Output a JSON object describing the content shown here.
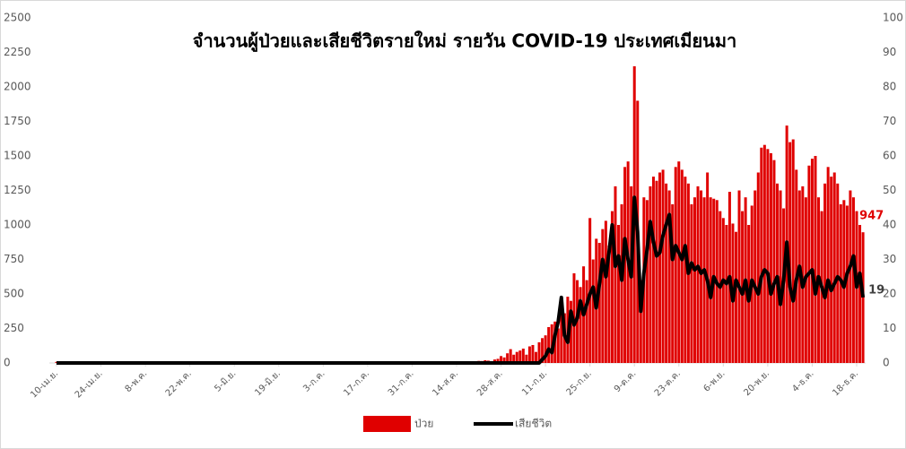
{
  "chart_data": {
    "type": "bar-line",
    "title": "จำนวนผู้ป่วยและเสียชีวิตรายใหม่ รายวัน COVID-19 ประเทศเมียนมา",
    "categories": [
      "10-เม.ย.",
      null,
      null,
      null,
      null,
      null,
      null,
      null,
      null,
      null,
      null,
      null,
      null,
      null,
      "24-เม.ย.",
      null,
      null,
      null,
      null,
      null,
      null,
      null,
      null,
      null,
      null,
      null,
      null,
      null,
      "8-พ.ค.",
      null,
      null,
      null,
      null,
      null,
      null,
      null,
      null,
      null,
      null,
      null,
      null,
      null,
      "22-พ.ค.",
      null,
      null,
      null,
      null,
      null,
      null,
      null,
      null,
      null,
      null,
      null,
      null,
      null,
      "5-มิ.ย.",
      null,
      null,
      null,
      null,
      null,
      null,
      null,
      null,
      null,
      null,
      null,
      null,
      null,
      "19-มิ.ย.",
      null,
      null,
      null,
      null,
      null,
      null,
      null,
      null,
      null,
      null,
      null,
      null,
      null,
      "3-ก.ค.",
      null,
      null,
      null,
      null,
      null,
      null,
      null,
      null,
      null,
      null,
      null,
      null,
      null,
      "17-ก.ค.",
      null,
      null,
      null,
      null,
      null,
      null,
      null,
      null,
      null,
      null,
      null,
      null,
      null,
      "31-ก.ค.",
      null,
      null,
      null,
      null,
      null,
      null,
      null,
      null,
      null,
      null,
      null,
      null,
      null,
      "14-ส.ค.",
      null,
      null,
      null,
      null,
      null,
      null,
      null,
      null,
      null,
      null,
      null,
      null,
      null,
      "28-ส.ค.",
      null,
      null,
      null,
      null,
      null,
      null,
      null,
      null,
      null,
      null,
      null,
      null,
      null,
      "11-ก.ย.",
      null,
      null,
      null,
      null,
      null,
      null,
      null,
      null,
      null,
      null,
      null,
      null,
      null,
      "25-ก.ย.",
      null,
      null,
      null,
      null,
      null,
      null,
      null,
      null,
      null,
      null,
      null,
      null,
      null,
      "9-ต.ค.",
      null,
      null,
      null,
      null,
      null,
      null,
      null,
      null,
      null,
      null,
      null,
      null,
      null,
      "23-ต.ค.",
      null,
      null,
      null,
      null,
      null,
      null,
      null,
      null,
      null,
      null,
      null,
      null,
      null,
      "6-พ.ย.",
      null,
      null,
      null,
      null,
      null,
      null,
      null,
      null,
      null,
      null,
      null,
      null,
      null,
      "20-พ.ย.",
      null,
      null,
      null,
      null,
      null,
      null,
      null,
      null,
      null,
      null,
      null,
      null,
      null,
      "4-ธ.ค.",
      null,
      null,
      null,
      null,
      null,
      null,
      null,
      null,
      null,
      null,
      null,
      null,
      null,
      "18-ธ.ค.",
      null,
      null
    ],
    "series": [
      {
        "name": "ป่วย",
        "color": "#e00000",
        "values": [
          8,
          5,
          12,
          4,
          3,
          6,
          10,
          5,
          2,
          4,
          3,
          2,
          1,
          4,
          2,
          1,
          3,
          1,
          0,
          2,
          1,
          0,
          1,
          2,
          0,
          1,
          0,
          0,
          3,
          2,
          0,
          1,
          0,
          0,
          1,
          0,
          0,
          2,
          0,
          1,
          0,
          1,
          0,
          0,
          2,
          1,
          0,
          3,
          1,
          0,
          0,
          1,
          0,
          0,
          2,
          0,
          1,
          0,
          8,
          0,
          2,
          1,
          0,
          0,
          1,
          0,
          0,
          1,
          0,
          0,
          2,
          5,
          0,
          1,
          0,
          0,
          0,
          1,
          0,
          0,
          0,
          2,
          0,
          0,
          1,
          0,
          0,
          1,
          0,
          0,
          1,
          0,
          0,
          2,
          0,
          0,
          1,
          0,
          0,
          1,
          0,
          0,
          1,
          0,
          0,
          0,
          1,
          0,
          0,
          0,
          1,
          0,
          0,
          1,
          0,
          0,
          0,
          2,
          0,
          0,
          1,
          0,
          0,
          0,
          1,
          0,
          0,
          2,
          5,
          3,
          8,
          12,
          10,
          15,
          14,
          20,
          17,
          9,
          25,
          30,
          50,
          40,
          70,
          100,
          60,
          80,
          90,
          104,
          60,
          120,
          130,
          80,
          150,
          180,
          200,
          260,
          280,
          300,
          250,
          400,
          360,
          480,
          450,
          650,
          600,
          550,
          700,
          600,
          1050,
          750,
          900,
          870,
          970,
          1030,
          850,
          1100,
          1280,
          1000,
          1150,
          1420,
          1460,
          1280,
          2150,
          1900,
          600,
          1200,
          1180,
          1280,
          1350,
          1320,
          1380,
          1400,
          1300,
          1250,
          1150,
          1420,
          1460,
          1400,
          1350,
          1300,
          1150,
          1200,
          1280,
          1250,
          1200,
          1380,
          1200,
          1190,
          1180,
          1100,
          1050,
          1000,
          1240,
          1010,
          950,
          1250,
          1100,
          1200,
          1000,
          1140,
          1250,
          1380,
          1560,
          1580,
          1550,
          1520,
          1470,
          1300,
          1250,
          1120,
          1720,
          1600,
          1620,
          1400,
          1250,
          1280,
          1200,
          1430,
          1480,
          1500,
          1200,
          1100,
          1300,
          1420,
          1350,
          1380,
          1300,
          1150,
          1180,
          1140,
          1250,
          1200,
          1100,
          1000,
          947
        ]
      },
      {
        "name": "เสียชีวิต",
        "color": "#000000",
        "axis": "y2",
        "values": [
          0,
          0,
          0,
          0,
          0,
          0,
          0,
          0,
          0,
          0,
          0,
          0,
          0,
          0,
          0,
          0,
          0,
          0,
          0,
          0,
          0,
          0,
          0,
          0,
          0,
          0,
          0,
          0,
          0,
          0,
          0,
          0,
          0,
          0,
          0,
          0,
          0,
          0,
          0,
          0,
          0,
          0,
          0,
          0,
          0,
          0,
          0,
          0,
          0,
          0,
          0,
          0,
          0,
          0,
          0,
          0,
          0,
          0,
          0,
          0,
          0,
          0,
          0,
          0,
          0,
          0,
          0,
          0,
          0,
          0,
          0,
          0,
          0,
          0,
          0,
          0,
          0,
          0,
          0,
          0,
          0,
          0,
          0,
          0,
          0,
          0,
          0,
          0,
          0,
          0,
          0,
          0,
          0,
          0,
          0,
          0,
          0,
          0,
          0,
          0,
          0,
          0,
          0,
          0,
          0,
          0,
          0,
          0,
          0,
          0,
          0,
          0,
          0,
          0,
          0,
          0,
          0,
          0,
          0,
          0,
          0,
          0,
          0,
          0,
          0,
          0,
          0,
          0,
          0,
          0,
          0,
          0,
          0,
          0,
          0,
          0,
          0,
          0,
          0,
          0,
          0,
          0,
          0,
          0,
          0,
          0,
          0,
          0,
          0,
          0,
          0,
          0,
          0,
          1,
          2,
          4,
          3,
          8,
          12,
          19,
          8,
          6,
          15,
          11,
          13,
          18,
          14,
          17,
          20,
          22,
          16,
          23,
          30,
          25,
          32,
          40,
          28,
          31,
          24,
          36,
          30,
          25,
          48,
          38,
          15,
          26,
          33,
          41,
          35,
          31,
          32,
          37,
          40,
          43,
          30,
          34,
          32,
          30,
          34,
          26,
          29,
          27,
          28,
          26,
          27,
          24,
          19,
          25,
          23,
          22,
          24,
          23,
          25,
          18,
          24,
          22,
          20,
          24,
          18,
          24,
          22,
          20,
          25,
          27,
          26,
          20,
          23,
          25,
          17,
          24,
          35,
          22,
          18,
          24,
          28,
          22,
          25,
          26,
          27,
          20,
          25,
          22,
          19,
          24,
          21,
          23,
          25,
          24,
          22,
          26,
          28,
          31,
          22,
          26,
          19
        ]
      }
    ],
    "ylim": [
      0,
      2500
    ],
    "yticks": [
      0,
      250,
      500,
      750,
      1000,
      1250,
      1500,
      1750,
      2000,
      2250,
      2500
    ],
    "y2lim": [
      0,
      100
    ],
    "y2ticks": [
      0,
      10,
      20,
      30,
      40,
      50,
      60,
      70,
      80,
      90,
      100
    ],
    "grid": false,
    "legend": "bottom"
  }
}
